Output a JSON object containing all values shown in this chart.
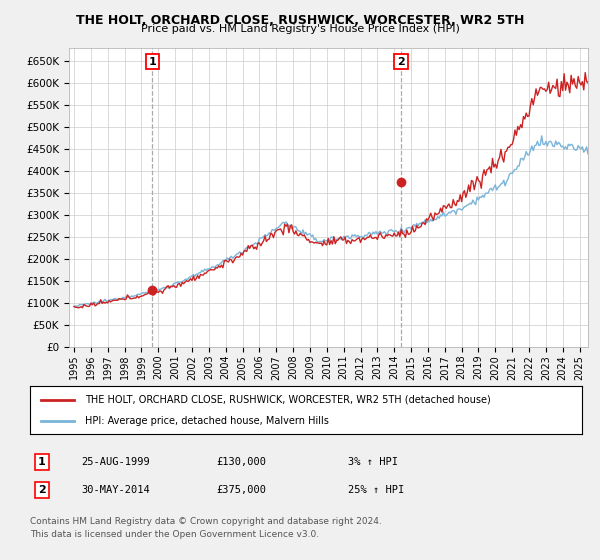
{
  "title": "THE HOLT, ORCHARD CLOSE, RUSHWICK, WORCESTER, WR2 5TH",
  "subtitle": "Price paid vs. HM Land Registry's House Price Index (HPI)",
  "legend_line1": "THE HOLT, ORCHARD CLOSE, RUSHWICK, WORCESTER, WR2 5TH (detached house)",
  "legend_line2": "HPI: Average price, detached house, Malvern Hills",
  "annotation1_label": "1",
  "annotation1_date": "25-AUG-1999",
  "annotation1_price": "£130,000",
  "annotation1_hpi": "3% ↑ HPI",
  "annotation2_label": "2",
  "annotation2_date": "30-MAY-2014",
  "annotation2_price": "£375,000",
  "annotation2_hpi": "25% ↑ HPI",
  "footnote1": "Contains HM Land Registry data © Crown copyright and database right 2024.",
  "footnote2": "This data is licensed under the Open Government Licence v3.0.",
  "hpi_color": "#7ab4d8",
  "price_color": "#cc2222",
  "marker_color": "#cc2222",
  "vline_color": "#aaaaaa",
  "ylim": [
    0,
    680000
  ],
  "yticks": [
    0,
    50000,
    100000,
    150000,
    200000,
    250000,
    300000,
    350000,
    400000,
    450000,
    500000,
    550000,
    600000,
    650000
  ],
  "bg_color": "#f0f0f0",
  "plot_bg_color": "#ffffff",
  "grid_color": "#cccccc",
  "sale1_year_f": 1999.64,
  "sale1_price": 130000,
  "sale2_year_f": 2014.41,
  "sale2_price": 375000
}
